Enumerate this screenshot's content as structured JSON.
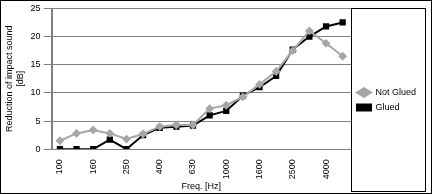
{
  "chart_data": {
    "type": "line",
    "categories": [
      "100",
      null,
      "160",
      null,
      "250",
      null,
      "400",
      null,
      "630",
      null,
      "1000",
      null,
      "1600",
      null,
      "2500",
      null,
      "4000",
      null
    ],
    "series": [
      {
        "name": "Not Glued",
        "color": "#a6a6a6",
        "marker": "diamond",
        "line_style": "solid",
        "values": [
          1.5,
          2.8,
          3.4,
          2.8,
          1.8,
          2.7,
          4.0,
          4.3,
          4.3,
          7.2,
          7.8,
          9.3,
          11.5,
          13.8,
          17.5,
          21.0,
          18.8,
          16.5
        ]
      },
      {
        "name": "Glued",
        "color": "#000000",
        "marker": "square",
        "line_style": "solid",
        "values": [
          0.0,
          0.0,
          0.0,
          1.7,
          0.0,
          2.5,
          3.8,
          4.0,
          4.2,
          6.0,
          6.8,
          9.5,
          11.0,
          13.0,
          17.7,
          20.0,
          21.8,
          22.5
        ]
      }
    ],
    "x_label": "Freq. [Hz]",
    "y_label": [
      "Reduction of impact sound",
      "[dB]"
    ],
    "ylim": [
      0,
      25
    ],
    "yticks": [
      0,
      5,
      10,
      15,
      20,
      25
    ],
    "grid": true,
    "legend": "right"
  }
}
